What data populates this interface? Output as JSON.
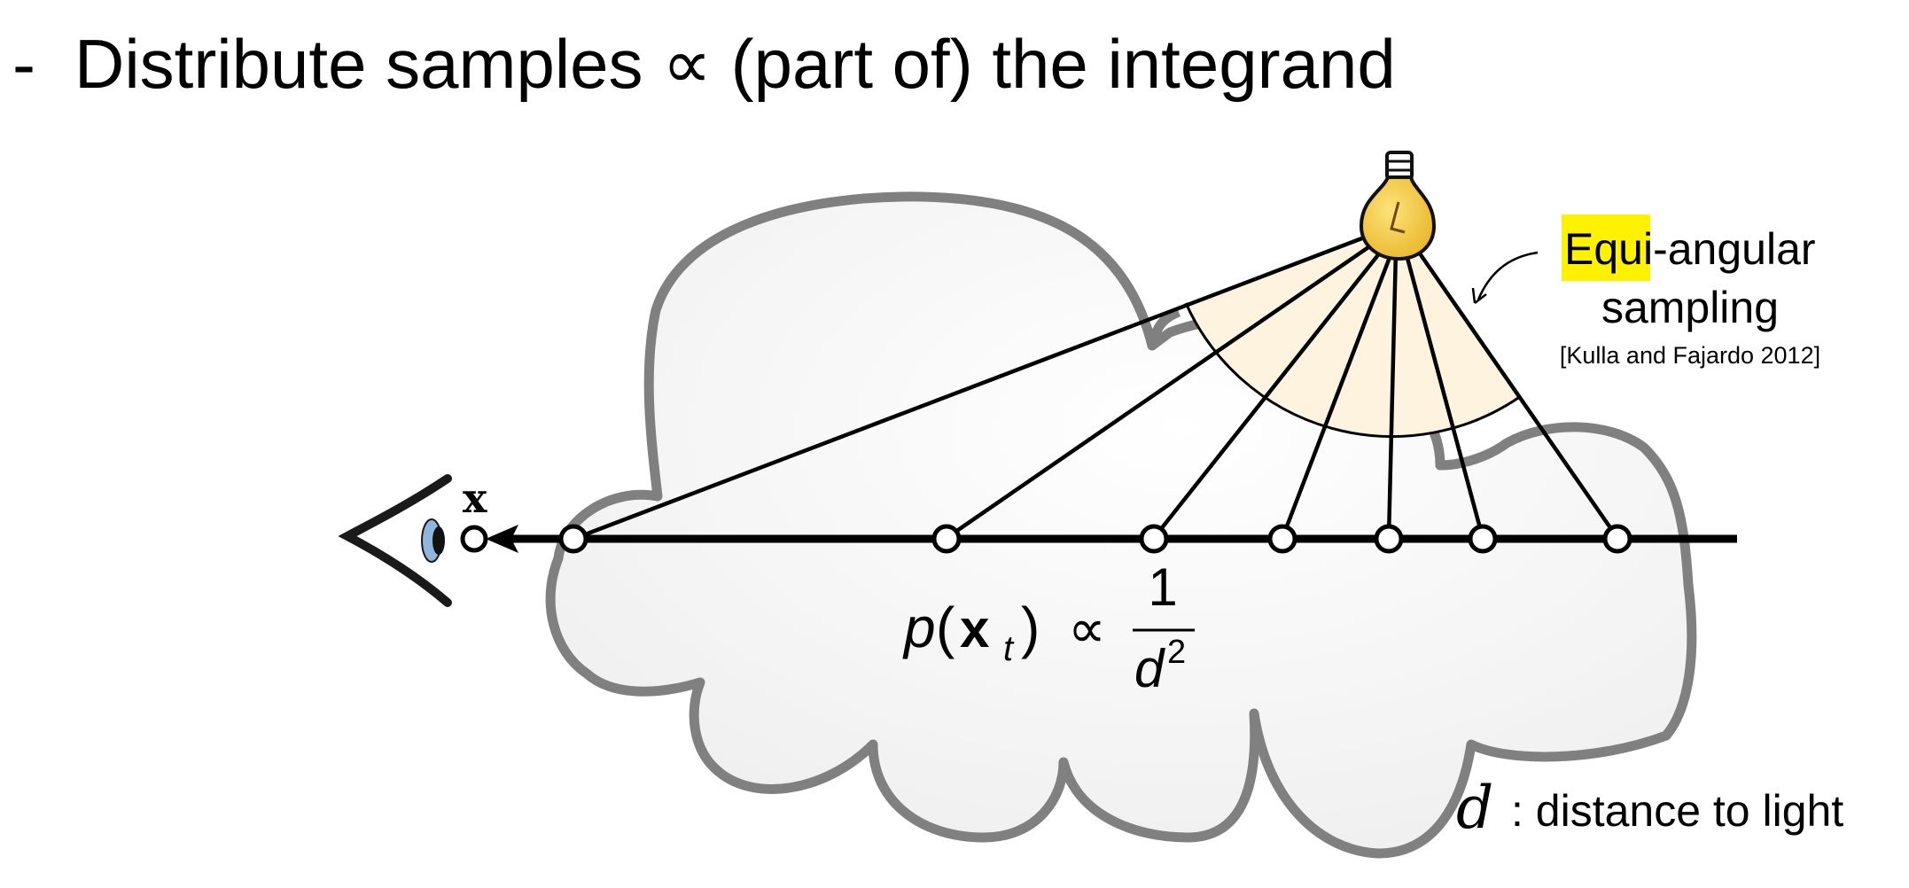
{
  "slide": {
    "bullet": "-",
    "title": "Distribute samples ∝ (part of) the integrand"
  },
  "diagram": {
    "eye_point_label": "x",
    "pdf_formula": {
      "lhs": "p(x",
      "subscript": "t",
      "rhs_open": ")",
      "prop": "∝",
      "numerator": "1",
      "denominator": "d",
      "exponent": "2"
    },
    "annotation": {
      "highlight": "Equi",
      "rest_line1": "-angular",
      "line2": "sampling",
      "citation": "[Kulla and Fajardo 2012]"
    },
    "legend": {
      "symbol": "d",
      "text": ": distance to light"
    },
    "colors": {
      "cloud_outline": "#808080",
      "wedge_fill": "#fdf3de",
      "bulb_fill": "#f2c744",
      "highlight": "#fff200",
      "iris": "#8fb6dd"
    },
    "icons": [
      "eye-icon",
      "light-bulb-icon",
      "cloud-shape",
      "arrow-icon"
    ]
  }
}
